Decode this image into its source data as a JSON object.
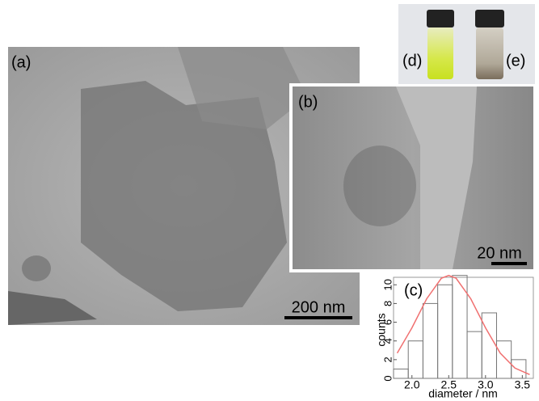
{
  "panels": {
    "a": "(a)",
    "b": "(b)",
    "c": "(c)",
    "d": "(d)",
    "e": "(e)"
  },
  "scale_bars": {
    "a": "200 nm",
    "b": "20 nm"
  },
  "chart_data": {
    "type": "histogram",
    "xlabel": "diameter / nm",
    "ylabel": "counts",
    "bins": [
      1.75,
      1.95,
      2.15,
      2.35,
      2.55,
      2.75,
      2.95,
      3.15,
      3.35,
      3.55
    ],
    "values": [
      1,
      4,
      8,
      10,
      11,
      5,
      7,
      4,
      2
    ],
    "color": "#777777",
    "fit": {
      "color": "#f07070",
      "x": [
        1.8,
        2.0,
        2.2,
        2.4,
        2.5,
        2.6,
        2.8,
        3.0,
        3.2,
        3.4,
        3.6
      ],
      "values": [
        2.7,
        5.4,
        8.5,
        10.7,
        11,
        10.7,
        8.5,
        5.4,
        2.7,
        1.1,
        0.4
      ]
    },
    "xlim": [
      1.75,
      3.65
    ],
    "ylim": [
      0,
      10.8
    ],
    "xticks": [
      {
        "value": 2,
        "label": "2.0"
      },
      {
        "value": 2.5,
        "label": "2.5"
      },
      {
        "value": 3,
        "label": "3.0"
      },
      {
        "value": 3.5,
        "label": "3.5"
      }
    ],
    "yticks": [
      0,
      2,
      4,
      6,
      8,
      10
    ]
  }
}
